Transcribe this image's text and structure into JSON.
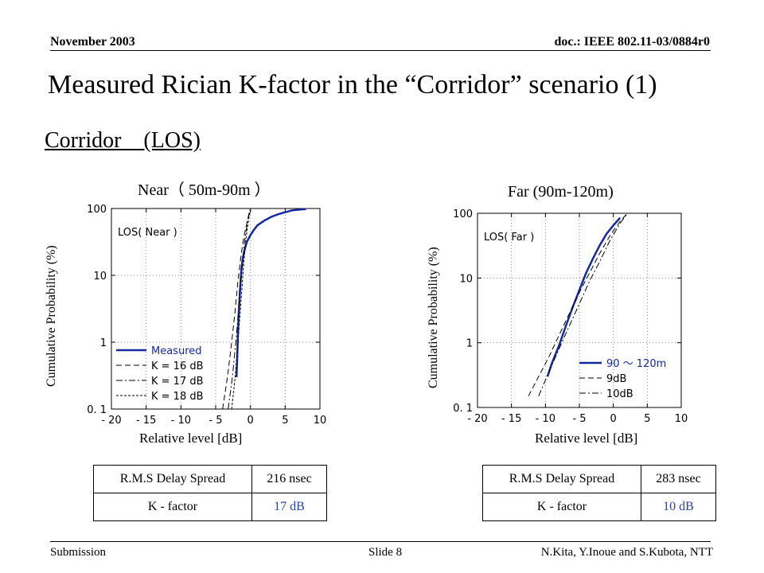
{
  "header": {
    "date": "November 2003",
    "doc": "doc.: IEEE 802.11-03/0884r0"
  },
  "title": "Measured Rician K-factor in the “Corridor” scenario (1)",
  "subtitle": "Corridor　(LOS)",
  "footer": {
    "left": "Submission",
    "center": "Slide 8",
    "right": "N.Kita, Y.Inoue and S.Kubota, NTT"
  },
  "colors": {
    "measured": "#1428a0",
    "theory": "#000000",
    "value_text": "#2a3fb0"
  },
  "chart_data": [
    {
      "type": "line",
      "title": "Near（ 50m-90m ）",
      "xlabel": "Relative level [dB]",
      "ylabel": "Cumulative Probability (%)",
      "xlim": [
        -20,
        10
      ],
      "ylim": [
        0.1,
        100
      ],
      "yscale": "log",
      "xticks": [
        "- 20",
        "- 15",
        "- 10",
        "- 5",
        "0",
        "5",
        "10"
      ],
      "yticks": [
        "100",
        "10",
        "1",
        "0. 1"
      ],
      "annotation": "LOS( Near )",
      "legend": [
        "Measured",
        "K = 16 dB",
        "K = 17 dB",
        "K = 18 dB"
      ],
      "legend_position": "lower-left",
      "series": [
        {
          "name": "Measured",
          "style": "solid",
          "x": [
            -2,
            -1.9,
            -1.8,
            -1.7,
            -1.5,
            -1.3,
            -1.1,
            -0.8,
            -0.5,
            0,
            0.5,
            1,
            2,
            3,
            4,
            5,
            6,
            8
          ],
          "y": [
            0.3,
            0.6,
            1.2,
            2.5,
            6,
            12,
            18,
            25,
            32,
            40,
            48,
            56,
            66,
            75,
            82,
            88,
            94,
            98
          ]
        },
        {
          "name": "K = 16 dB",
          "style": "dash",
          "x": [
            -4,
            -3.3,
            -2.7,
            -2.2,
            -1.8,
            -1.4,
            -1,
            -0.6,
            -0.3,
            0
          ],
          "y": [
            0.1,
            0.3,
            1,
            3,
            8,
            18,
            35,
            55,
            75,
            95
          ]
        },
        {
          "name": "K = 17 dB",
          "style": "dash-dot",
          "x": [
            -3.2,
            -2.6,
            -2.1,
            -1.7,
            -1.4,
            -1.1,
            -0.8,
            -0.5,
            -0.3,
            -0.1
          ],
          "y": [
            0.1,
            0.3,
            1,
            3,
            8,
            18,
            35,
            55,
            75,
            95
          ]
        },
        {
          "name": "K = 18 dB",
          "style": "dot",
          "x": [
            -2.7,
            -2.2,
            -1.8,
            -1.45,
            -1.15,
            -0.9,
            -0.65,
            -0.4,
            -0.2,
            0.05
          ],
          "y": [
            0.1,
            0.3,
            1,
            3,
            8,
            18,
            35,
            55,
            75,
            95
          ]
        }
      ]
    },
    {
      "type": "line",
      "title": "Far (90m-120m)",
      "xlabel": "Relative level [dB]",
      "ylabel": "Cumulative Probability (%)",
      "xlim": [
        -20,
        10
      ],
      "ylim": [
        0.1,
        100
      ],
      "yscale": "log",
      "xticks": [
        "- 20",
        "- 15",
        "- 10",
        "- 5",
        "0",
        "5",
        "10"
      ],
      "yticks": [
        "100",
        "10",
        "1",
        "0. 1"
      ],
      "annotation": "LOS( Far )",
      "legend": [
        "90 ～ 120m",
        "9dB",
        "10dB"
      ],
      "legend_position": "lower-right",
      "series": [
        {
          "name": "90 ～ 120m",
          "style": "solid",
          "x": [
            -9.7,
            -9,
            -8,
            -7,
            -6,
            -5,
            -4,
            -3,
            -2,
            -1,
            0,
            1
          ],
          "y": [
            0.3,
            0.5,
            0.9,
            1.8,
            3.5,
            6.5,
            12,
            20,
            32,
            48,
            65,
            85
          ]
        },
        {
          "name": "9dB",
          "style": "dash",
          "x": [
            -12.5,
            -11,
            -9.5,
            -8,
            -6.5,
            -5,
            -3.5,
            -2,
            -0.5,
            1,
            2
          ],
          "y": [
            0.15,
            0.3,
            0.6,
            1.3,
            2.8,
            6,
            12,
            24,
            45,
            75,
            98
          ]
        },
        {
          "name": "10dB",
          "style": "dash-dot",
          "x": [
            -11,
            -9.5,
            -8,
            -6.5,
            -5,
            -3.5,
            -2,
            -0.5,
            1,
            2
          ],
          "y": [
            0.15,
            0.35,
            0.8,
            1.8,
            4,
            9,
            18,
            38,
            70,
            97
          ]
        }
      ]
    }
  ],
  "tables": {
    "near": {
      "label1": "R.M.S Delay Spread",
      "value1": "216 nsec",
      "label2": "K - factor",
      "value2": "17 dB"
    },
    "far": {
      "label1": "R.M.S Delay Spread",
      "value1": "283 nsec",
      "label2": "K - factor",
      "value2": "10 dB"
    }
  }
}
